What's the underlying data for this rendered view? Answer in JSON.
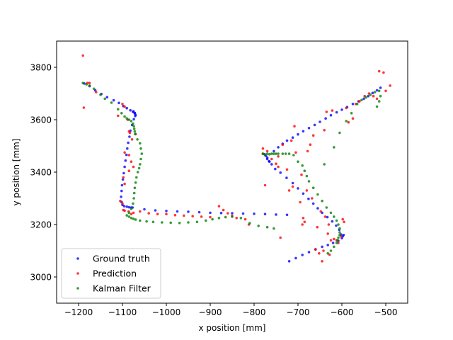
{
  "chart_data": {
    "type": "scatter",
    "xlabel": "x position [mm]",
    "ylabel": "y position [mm]",
    "xlim": [
      -1250,
      -450
    ],
    "ylim": [
      2900,
      3900
    ],
    "x_ticks": [
      -1200,
      -1100,
      -1000,
      -900,
      -800,
      -700,
      -600,
      -500
    ],
    "y_ticks": [
      3000,
      3200,
      3400,
      3600,
      3800
    ],
    "grid": false,
    "legend_position": "lower-left",
    "series": [
      {
        "name": "Ground truth",
        "color": "#0000ff",
        "points": [
          [
            -1187,
            3738
          ],
          [
            -1175,
            3728
          ],
          [
            -1162,
            3712
          ],
          [
            -1148,
            3698
          ],
          [
            -1135,
            3686
          ],
          [
            -1120,
            3674
          ],
          [
            -1108,
            3664
          ],
          [
            -1098,
            3652
          ],
          [
            -1090,
            3644
          ],
          [
            -1082,
            3636
          ],
          [
            -1076,
            3630
          ],
          [
            -1072,
            3624
          ],
          [
            -1070,
            3618
          ],
          [
            -1072,
            3626
          ],
          [
            -1075,
            3632
          ],
          [
            -1071,
            3614
          ],
          [
            -1074,
            3602
          ],
          [
            -1078,
            3580
          ],
          [
            -1082,
            3558
          ],
          [
            -1084,
            3535
          ],
          [
            -1087,
            3512
          ],
          [
            -1089,
            3490
          ],
          [
            -1091,
            3466
          ],
          [
            -1093,
            3444
          ],
          [
            -1095,
            3420
          ],
          [
            -1097,
            3396
          ],
          [
            -1099,
            3372
          ],
          [
            -1101,
            3350
          ],
          [
            -1102,
            3328
          ],
          [
            -1103,
            3306
          ],
          [
            -1102,
            3286
          ],
          [
            -1100,
            3275
          ],
          [
            -1096,
            3270
          ],
          [
            -1090,
            3268
          ],
          [
            -1085,
            3266
          ],
          [
            -1080,
            3265
          ],
          [
            -1077,
            3265
          ],
          [
            -1050,
            3258
          ],
          [
            -1025,
            3254
          ],
          [
            -1000,
            3252
          ],
          [
            -975,
            3250
          ],
          [
            -950,
            3249
          ],
          [
            -925,
            3247
          ],
          [
            -900,
            3245
          ],
          [
            -875,
            3244
          ],
          [
            -850,
            3243
          ],
          [
            -825,
            3242
          ],
          [
            -800,
            3241
          ],
          [
            -775,
            3240
          ],
          [
            -750,
            3238
          ],
          [
            -725,
            3237
          ],
          [
            -720,
            3060
          ],
          [
            -705,
            3072
          ],
          [
            -690,
            3084
          ],
          [
            -675,
            3095
          ],
          [
            -660,
            3105
          ],
          [
            -645,
            3115
          ],
          [
            -632,
            3122
          ],
          [
            -620,
            3130
          ],
          [
            -608,
            3138
          ],
          [
            -600,
            3148
          ],
          [
            -596,
            3160
          ],
          [
            -598,
            3155
          ],
          [
            -602,
            3162
          ],
          [
            -606,
            3180
          ],
          [
            -613,
            3196
          ],
          [
            -622,
            3212
          ],
          [
            -633,
            3228
          ],
          [
            -645,
            3245
          ],
          [
            -655,
            3262
          ],
          [
            -665,
            3280
          ],
          [
            -676,
            3298
          ],
          [
            -688,
            3318
          ],
          [
            -700,
            3338
          ],
          [
            -712,
            3358
          ],
          [
            -726,
            3378
          ],
          [
            -740,
            3398
          ],
          [
            -752,
            3412
          ],
          [
            -760,
            3430
          ],
          [
            -766,
            3442
          ],
          [
            -770,
            3455
          ],
          [
            -773,
            3462
          ],
          [
            -776,
            3468
          ],
          [
            -770,
            3450
          ],
          [
            -765,
            3440
          ],
          [
            -755,
            3480
          ],
          [
            -745,
            3495
          ],
          [
            -735,
            3508
          ],
          [
            -725,
            3520
          ],
          [
            -712,
            3532
          ],
          [
            -700,
            3544
          ],
          [
            -688,
            3556
          ],
          [
            -675,
            3568
          ],
          [
            -662,
            3580
          ],
          [
            -650,
            3592
          ],
          [
            -637,
            3605
          ],
          [
            -625,
            3617
          ],
          [
            -612,
            3628
          ],
          [
            -600,
            3638
          ],
          [
            -588,
            3648
          ],
          [
            -575,
            3660
          ],
          [
            -562,
            3670
          ],
          [
            -550,
            3680
          ],
          [
            -540,
            3690
          ],
          [
            -530,
            3702
          ],
          [
            -520,
            3712
          ],
          [
            -512,
            3722
          ]
        ]
      },
      {
        "name": "Prediction",
        "color": "#ff0000",
        "points": [
          [
            -1190,
            3845
          ],
          [
            -1188,
            3646
          ],
          [
            -1180,
            3740
          ],
          [
            -1175,
            3740
          ],
          [
            -1160,
            3705
          ],
          [
            -1110,
            3615
          ],
          [
            -1100,
            3660
          ],
          [
            -1095,
            3650
          ],
          [
            -1088,
            3600
          ],
          [
            -1085,
            3555
          ],
          [
            -1083,
            3550
          ],
          [
            -1070,
            3545
          ],
          [
            -1078,
            3525
          ],
          [
            -1095,
            3475
          ],
          [
            -1085,
            3465
          ],
          [
            -1080,
            3440
          ],
          [
            -1075,
            3420
          ],
          [
            -1085,
            3405
          ],
          [
            -1098,
            3380
          ],
          [
            -1095,
            3355
          ],
          [
            -1105,
            3290
          ],
          [
            -1100,
            3280
          ],
          [
            -1098,
            3255
          ],
          [
            -1095,
            3253
          ],
          [
            -1086,
            3250
          ],
          [
            -1080,
            3240
          ],
          [
            -1075,
            3245
          ],
          [
            -1060,
            3250
          ],
          [
            -1040,
            3243
          ],
          [
            -1020,
            3240
          ],
          [
            -1000,
            3240
          ],
          [
            -980,
            3236
          ],
          [
            -960,
            3234
          ],
          [
            -940,
            3232
          ],
          [
            -920,
            3230
          ],
          [
            -900,
            3228
          ],
          [
            -880,
            3270
          ],
          [
            -870,
            3255
          ],
          [
            -860,
            3243
          ],
          [
            -850,
            3233
          ],
          [
            -840,
            3225
          ],
          [
            -820,
            3220
          ],
          [
            -812,
            3200
          ],
          [
            -780,
            3470
          ],
          [
            -780,
            3490
          ],
          [
            -775,
            3350
          ],
          [
            -770,
            3480
          ],
          [
            -760,
            3450
          ],
          [
            -750,
            3432
          ],
          [
            -745,
            3420
          ],
          [
            -745,
            3460
          ],
          [
            -740,
            3150
          ],
          [
            -735,
            3505
          ],
          [
            -725,
            3410
          ],
          [
            -720,
            3330
          ],
          [
            -715,
            3520
          ],
          [
            -712,
            3345
          ],
          [
            -708,
            3575
          ],
          [
            -705,
            3475
          ],
          [
            -695,
            3285
          ],
          [
            -692,
            3390
          ],
          [
            -690,
            3200
          ],
          [
            -688,
            3225
          ],
          [
            -685,
            3210
          ],
          [
            -680,
            3330
          ],
          [
            -678,
            3480
          ],
          [
            -672,
            3505
          ],
          [
            -668,
            3300
          ],
          [
            -665,
            3540
          ],
          [
            -660,
            3105
          ],
          [
            -656,
            3190
          ],
          [
            -652,
            3090
          ],
          [
            -648,
            3250
          ],
          [
            -645,
            3060
          ],
          [
            -642,
            3100
          ],
          [
            -640,
            3560
          ],
          [
            -638,
            3230
          ],
          [
            -635,
            3630
          ],
          [
            -632,
            3165
          ],
          [
            -630,
            3200
          ],
          [
            -628,
            3085
          ],
          [
            -625,
            3140
          ],
          [
            -622,
            3635
          ],
          [
            -618,
            3145
          ],
          [
            -612,
            3140
          ],
          [
            -608,
            3130
          ],
          [
            -602,
            3155
          ],
          [
            -598,
            3220
          ],
          [
            -595,
            3210
          ],
          [
            -590,
            3645
          ],
          [
            -585,
            3590
          ],
          [
            -575,
            3605
          ],
          [
            -568,
            3660
          ],
          [
            -560,
            3670
          ],
          [
            -548,
            3690
          ],
          [
            -538,
            3700
          ],
          [
            -528,
            3690
          ],
          [
            -515,
            3785
          ],
          [
            -505,
            3780
          ],
          [
            -500,
            3710
          ],
          [
            -490,
            3730
          ],
          [
            -520,
            3680
          ]
        ]
      },
      {
        "name": "Kalman Filter",
        "color": "#008000",
        "points": [
          [
            -1190,
            3740
          ],
          [
            -1182,
            3735
          ],
          [
            -1175,
            3730
          ],
          [
            -1165,
            3718
          ],
          [
            -1150,
            3695
          ],
          [
            -1140,
            3680
          ],
          [
            -1125,
            3665
          ],
          [
            -1110,
            3640
          ],
          [
            -1102,
            3625
          ],
          [
            -1095,
            3612
          ],
          [
            -1090,
            3605
          ],
          [
            -1085,
            3600
          ],
          [
            -1080,
            3595
          ],
          [
            -1076,
            3585
          ],
          [
            -1074,
            3575
          ],
          [
            -1073,
            3565
          ],
          [
            -1072,
            3555
          ],
          [
            -1071,
            3545
          ],
          [
            -1066,
            3525
          ],
          [
            -1060,
            3510
          ],
          [
            -1058,
            3490
          ],
          [
            -1056,
            3470
          ],
          [
            -1058,
            3450
          ],
          [
            -1060,
            3430
          ],
          [
            -1062,
            3415
          ],
          [
            -1065,
            3400
          ],
          [
            -1068,
            3380
          ],
          [
            -1070,
            3360
          ],
          [
            -1072,
            3340
          ],
          [
            -1073,
            3320
          ],
          [
            -1074,
            3300
          ],
          [
            -1076,
            3280
          ],
          [
            -1080,
            3260
          ],
          [
            -1085,
            3245
          ],
          [
            -1090,
            3235
          ],
          [
            -1085,
            3230
          ],
          [
            -1080,
            3225
          ],
          [
            -1075,
            3222
          ],
          [
            -1070,
            3219
          ],
          [
            -1060,
            3215
          ],
          [
            -1045,
            3212
          ],
          [
            -1030,
            3210
          ],
          [
            -1010,
            3208
          ],
          [
            -990,
            3207
          ],
          [
            -970,
            3206
          ],
          [
            -950,
            3208
          ],
          [
            -930,
            3210
          ],
          [
            -910,
            3215
          ],
          [
            -895,
            3220
          ],
          [
            -880,
            3225
          ],
          [
            -865,
            3228
          ],
          [
            -850,
            3230
          ],
          [
            -830,
            3225
          ],
          [
            -810,
            3205
          ],
          [
            -790,
            3195
          ],
          [
            -770,
            3190
          ],
          [
            -755,
            3185
          ],
          [
            -780,
            3470
          ],
          [
            -775,
            3465
          ],
          [
            -770,
            3470
          ],
          [
            -765,
            3468
          ],
          [
            -760,
            3470
          ],
          [
            -755,
            3470
          ],
          [
            -750,
            3470
          ],
          [
            -745,
            3470
          ],
          [
            -735,
            3470
          ],
          [
            -728,
            3470
          ],
          [
            -720,
            3470
          ],
          [
            -710,
            3465
          ],
          [
            -700,
            3440
          ],
          [
            -690,
            3425
          ],
          [
            -685,
            3405
          ],
          [
            -680,
            3385
          ],
          [
            -675,
            3365
          ],
          [
            -665,
            3340
          ],
          [
            -655,
            3315
          ],
          [
            -645,
            3290
          ],
          [
            -635,
            3265
          ],
          [
            -625,
            3245
          ],
          [
            -618,
            3230
          ],
          [
            -612,
            3215
          ],
          [
            -608,
            3200
          ],
          [
            -605,
            3185
          ],
          [
            -605,
            3170
          ],
          [
            -605,
            3160
          ],
          [
            -608,
            3150
          ],
          [
            -610,
            3140
          ],
          [
            -612,
            3130
          ],
          [
            -618,
            3115
          ],
          [
            -625,
            3100
          ],
          [
            -632,
            3090
          ],
          [
            -640,
            3430
          ],
          [
            -618,
            3495
          ],
          [
            -605,
            3550
          ],
          [
            -590,
            3595
          ],
          [
            -578,
            3625
          ],
          [
            -565,
            3660
          ],
          [
            -555,
            3675
          ],
          [
            -545,
            3685
          ],
          [
            -535,
            3695
          ],
          [
            -525,
            3705
          ],
          [
            -515,
            3710
          ],
          [
            -512,
            3690
          ],
          [
            -515,
            3670
          ],
          [
            -520,
            3650
          ]
        ]
      }
    ]
  }
}
